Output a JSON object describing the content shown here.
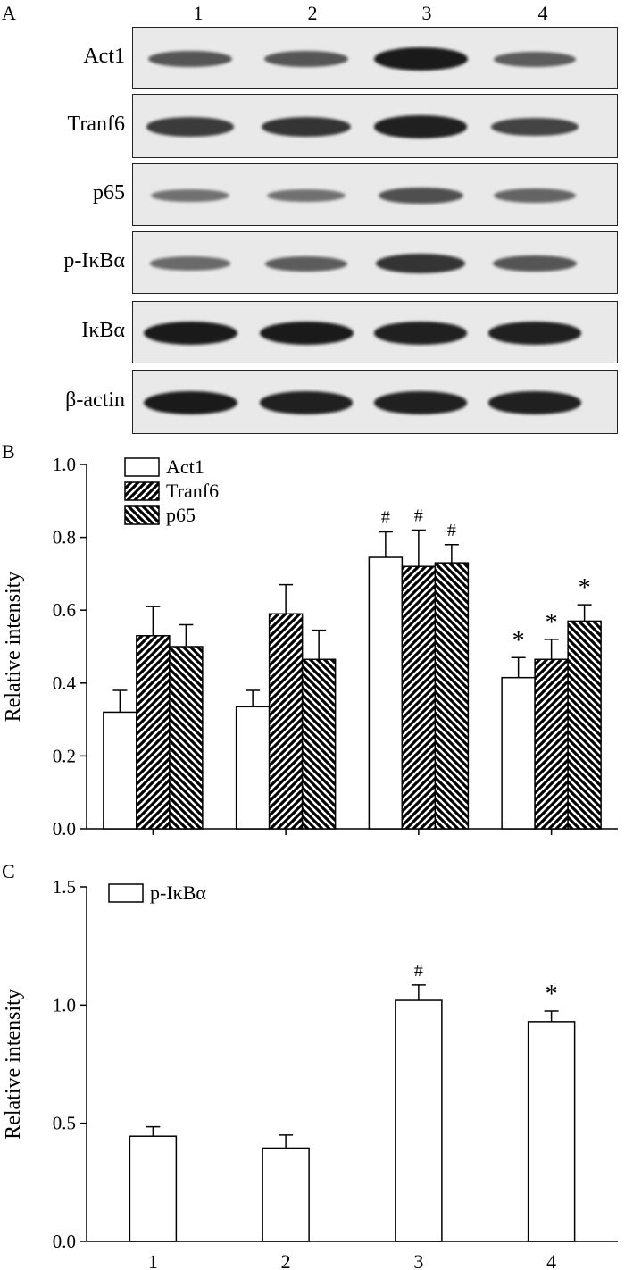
{
  "panels": {
    "a": "A",
    "b": "B",
    "c": "C"
  },
  "lanes": [
    "1",
    "2",
    "3",
    "4"
  ],
  "blot_rows": [
    {
      "label": "Act1",
      "band_intensity": [
        0.55,
        0.55,
        1.0,
        0.5
      ]
    },
    {
      "label": "Tranf6",
      "band_intensity": [
        0.75,
        0.8,
        0.95,
        0.7
      ]
    },
    {
      "label": "p65",
      "band_intensity": [
        0.35,
        0.35,
        0.6,
        0.45
      ]
    },
    {
      "label": "p-IκBα",
      "band_intensity": [
        0.4,
        0.5,
        0.8,
        0.55
      ]
    },
    {
      "label": "IκBα",
      "band_intensity": [
        1.0,
        1.0,
        0.95,
        0.95
      ]
    },
    {
      "label": "β-actin",
      "band_intensity": [
        1.0,
        0.95,
        0.95,
        0.95
      ]
    }
  ],
  "chart_data": [
    {
      "type": "bar",
      "panel": "B",
      "ylabel": "Relative intensity",
      "categories": [
        "1",
        "2",
        "3",
        "4"
      ],
      "ylim": [
        0.0,
        1.0
      ],
      "yticks": [
        "0.0",
        "0.2",
        "0.4",
        "0.6",
        "0.8",
        "1.0"
      ],
      "legend_position": "top-left",
      "series": [
        {
          "name": "Act1",
          "pattern": "white",
          "values": [
            0.32,
            0.335,
            0.745,
            0.415
          ],
          "errors": [
            0.06,
            0.045,
            0.07,
            0.055
          ],
          "annotations": [
            "",
            "",
            "#",
            "*"
          ]
        },
        {
          "name": "Tranf6",
          "pattern": "diagonal-up",
          "values": [
            0.53,
            0.59,
            0.72,
            0.465
          ],
          "errors": [
            0.08,
            0.08,
            0.1,
            0.055
          ],
          "annotations": [
            "",
            "",
            "#",
            "*"
          ]
        },
        {
          "name": "p65",
          "pattern": "diagonal-down",
          "values": [
            0.5,
            0.465,
            0.73,
            0.57
          ],
          "errors": [
            0.06,
            0.08,
            0.05,
            0.045
          ],
          "annotations": [
            "",
            "",
            "#",
            "*"
          ]
        }
      ]
    },
    {
      "type": "bar",
      "panel": "C",
      "ylabel": "Relative intensity",
      "categories": [
        "1",
        "2",
        "3",
        "4"
      ],
      "ylim": [
        0.0,
        1.5
      ],
      "yticks": [
        "0.0",
        "0.5",
        "1.0",
        "1.5"
      ],
      "legend_position": "top-left",
      "series": [
        {
          "name": "p-IκBα",
          "pattern": "white",
          "values": [
            0.445,
            0.395,
            1.02,
            0.93
          ],
          "errors": [
            0.04,
            0.055,
            0.065,
            0.045
          ],
          "annotations": [
            "",
            "",
            "#",
            "*"
          ]
        }
      ]
    }
  ]
}
